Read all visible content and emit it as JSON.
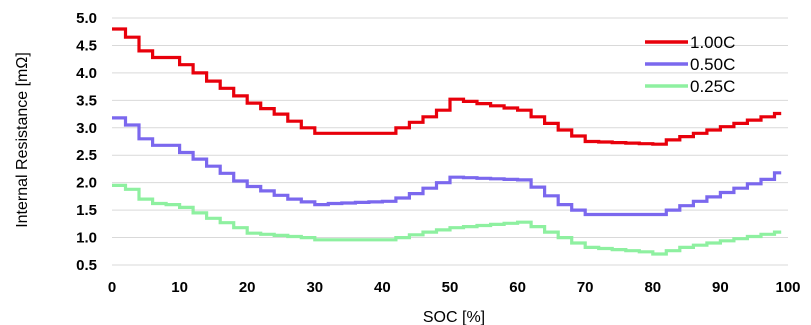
{
  "chart_data": {
    "type": "line",
    "title": "",
    "xlabel": "SOC [%]",
    "ylabel": "Internal Resistance [mΩ]",
    "xlim": [
      0,
      100
    ],
    "ylim": [
      0.5,
      5.0
    ],
    "x_ticks": [
      "0",
      "10",
      "20",
      "30",
      "40",
      "50",
      "60",
      "70",
      "80",
      "90",
      "100"
    ],
    "y_ticks": [
      "0.5",
      "1.0",
      "1.5",
      "2.0",
      "2.5",
      "3.0",
      "3.5",
      "4.0",
      "4.5",
      "5.0"
    ],
    "grid": "horizontal",
    "legend_position": "top-right",
    "step": true,
    "x": [
      0,
      2,
      4,
      6,
      8,
      10,
      12,
      14,
      16,
      18,
      20,
      22,
      24,
      26,
      28,
      30,
      32,
      34,
      36,
      38,
      40,
      42,
      44,
      46,
      48,
      50,
      52,
      54,
      56,
      58,
      60,
      62,
      64,
      66,
      68,
      70,
      72,
      74,
      76,
      78,
      80,
      82,
      84,
      86,
      88,
      90,
      92,
      94,
      96,
      98
    ],
    "series": [
      {
        "name": "1.00C",
        "color": "#e8000b",
        "values": [
          4.8,
          4.65,
          4.4,
          4.28,
          4.28,
          4.15,
          4.0,
          3.85,
          3.72,
          3.58,
          3.45,
          3.35,
          3.25,
          3.12,
          3.0,
          2.9,
          2.9,
          2.9,
          2.9,
          2.9,
          2.9,
          3.0,
          3.1,
          3.2,
          3.32,
          3.52,
          3.48,
          3.44,
          3.4,
          3.36,
          3.32,
          3.2,
          3.08,
          2.96,
          2.85,
          2.75,
          2.74,
          2.73,
          2.72,
          2.71,
          2.7,
          2.78,
          2.84,
          2.9,
          2.96,
          3.02,
          3.08,
          3.14,
          3.2,
          3.26
        ]
      },
      {
        "name": "0.50C",
        "color": "#7b68ee",
        "values": [
          3.18,
          3.05,
          2.8,
          2.68,
          2.68,
          2.55,
          2.43,
          2.3,
          2.17,
          2.03,
          1.93,
          1.85,
          1.77,
          1.7,
          1.65,
          1.6,
          1.62,
          1.63,
          1.64,
          1.65,
          1.66,
          1.72,
          1.8,
          1.9,
          2.0,
          2.1,
          2.09,
          2.08,
          2.07,
          2.06,
          2.05,
          1.92,
          1.76,
          1.6,
          1.5,
          1.42,
          1.42,
          1.42,
          1.42,
          1.42,
          1.42,
          1.5,
          1.58,
          1.66,
          1.74,
          1.82,
          1.9,
          1.98,
          2.06,
          2.18
        ]
      },
      {
        "name": "0.25C",
        "color": "#8ef0a0",
        "values": [
          1.95,
          1.88,
          1.7,
          1.62,
          1.6,
          1.55,
          1.45,
          1.35,
          1.27,
          1.18,
          1.08,
          1.06,
          1.04,
          1.02,
          1.0,
          0.96,
          0.96,
          0.96,
          0.96,
          0.96,
          0.96,
          1.0,
          1.05,
          1.1,
          1.14,
          1.18,
          1.2,
          1.22,
          1.24,
          1.26,
          1.28,
          1.2,
          1.1,
          1.0,
          0.9,
          0.82,
          0.8,
          0.78,
          0.76,
          0.74,
          0.7,
          0.76,
          0.82,
          0.86,
          0.9,
          0.94,
          0.98,
          1.02,
          1.06,
          1.1
        ]
      }
    ]
  }
}
